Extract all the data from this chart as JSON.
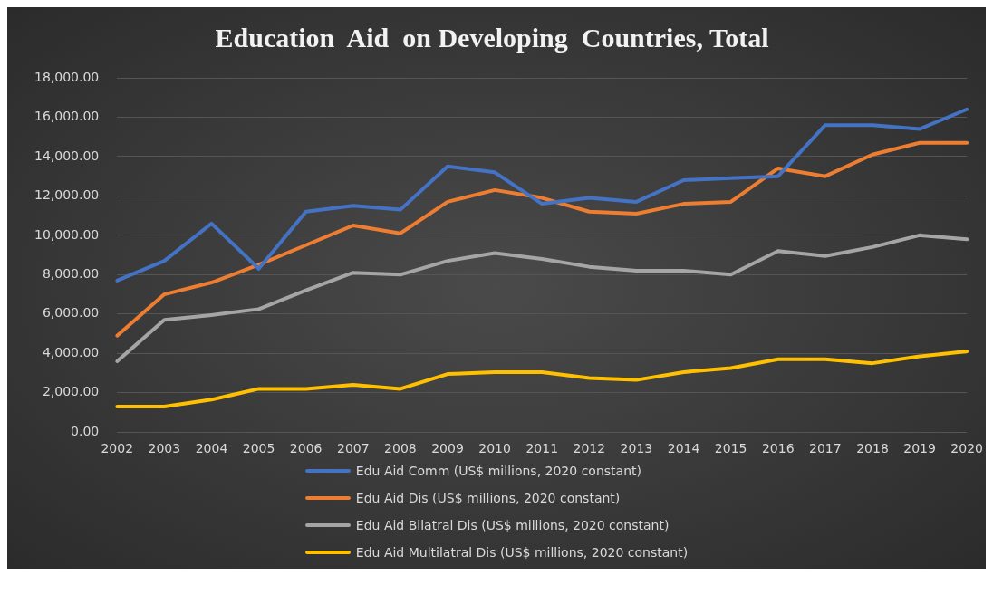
{
  "chart_data": {
    "type": "line",
    "title": "Education  Aid  on Developing  Countries, Total",
    "categories": [
      "2002",
      "2003",
      "2004",
      "2005",
      "2006",
      "2007",
      "2008",
      "2009",
      "2010",
      "2011",
      "2012",
      "2013",
      "2014",
      "2015",
      "2016",
      "2017",
      "2018",
      "2019",
      "2020"
    ],
    "series": [
      {
        "name": "Edu Aid Comm (US$ millions, 2020 constant)",
        "color": "#4472c4",
        "values": [
          7700,
          8700,
          10600,
          8300,
          11200,
          11500,
          11300,
          13500,
          13200,
          11600,
          11900,
          11700,
          12800,
          12900,
          13000,
          15600,
          15600,
          15400,
          16400
        ]
      },
      {
        "name": "Edu Aid Dis (US$ millions, 2020 constant)",
        "color": "#ed7d31",
        "values": [
          4900,
          7000,
          7600,
          8500,
          9500,
          10500,
          10100,
          11700,
          12300,
          11900,
          11200,
          11100,
          11600,
          11700,
          13400,
          13000,
          14100,
          14700,
          14700
        ]
      },
      {
        "name": "Edu Aid Bilatral Dis (US$ millions, 2020 constant)",
        "color": "#a5a5a5",
        "values": [
          3600,
          5700,
          5950,
          6250,
          7200,
          8100,
          8000,
          8700,
          9100,
          8800,
          8400,
          8200,
          8200,
          8000,
          9200,
          8950,
          9400,
          10000,
          9800
        ]
      },
      {
        "name": "Edu Aid Multilatral  Dis (US$ millions, 2020 constant)",
        "color": "#ffc000",
        "values": [
          1300,
          1300,
          1650,
          2200,
          2200,
          2400,
          2200,
          2950,
          3050,
          3050,
          2750,
          2650,
          3050,
          3250,
          3700,
          3700,
          3500,
          3850,
          4100
        ]
      }
    ],
    "ylim": [
      0,
      18000
    ],
    "yticks": [
      {
        "value": 0,
        "label": "0.00"
      },
      {
        "value": 2000,
        "label": "2,000.00"
      },
      {
        "value": 4000,
        "label": "4,000.00"
      },
      {
        "value": 6000,
        "label": "6,000.00"
      },
      {
        "value": 8000,
        "label": "8,000.00"
      },
      {
        "value": 10000,
        "label": "10,000.00"
      },
      {
        "value": 12000,
        "label": "12,000.00"
      },
      {
        "value": 14000,
        "label": "14,000.00"
      },
      {
        "value": 16000,
        "label": "16,000.00"
      },
      {
        "value": 18000,
        "label": "18,000.00"
      }
    ],
    "grid": "y",
    "legend": "bottom",
    "marker": "none",
    "line_style": "solid"
  }
}
